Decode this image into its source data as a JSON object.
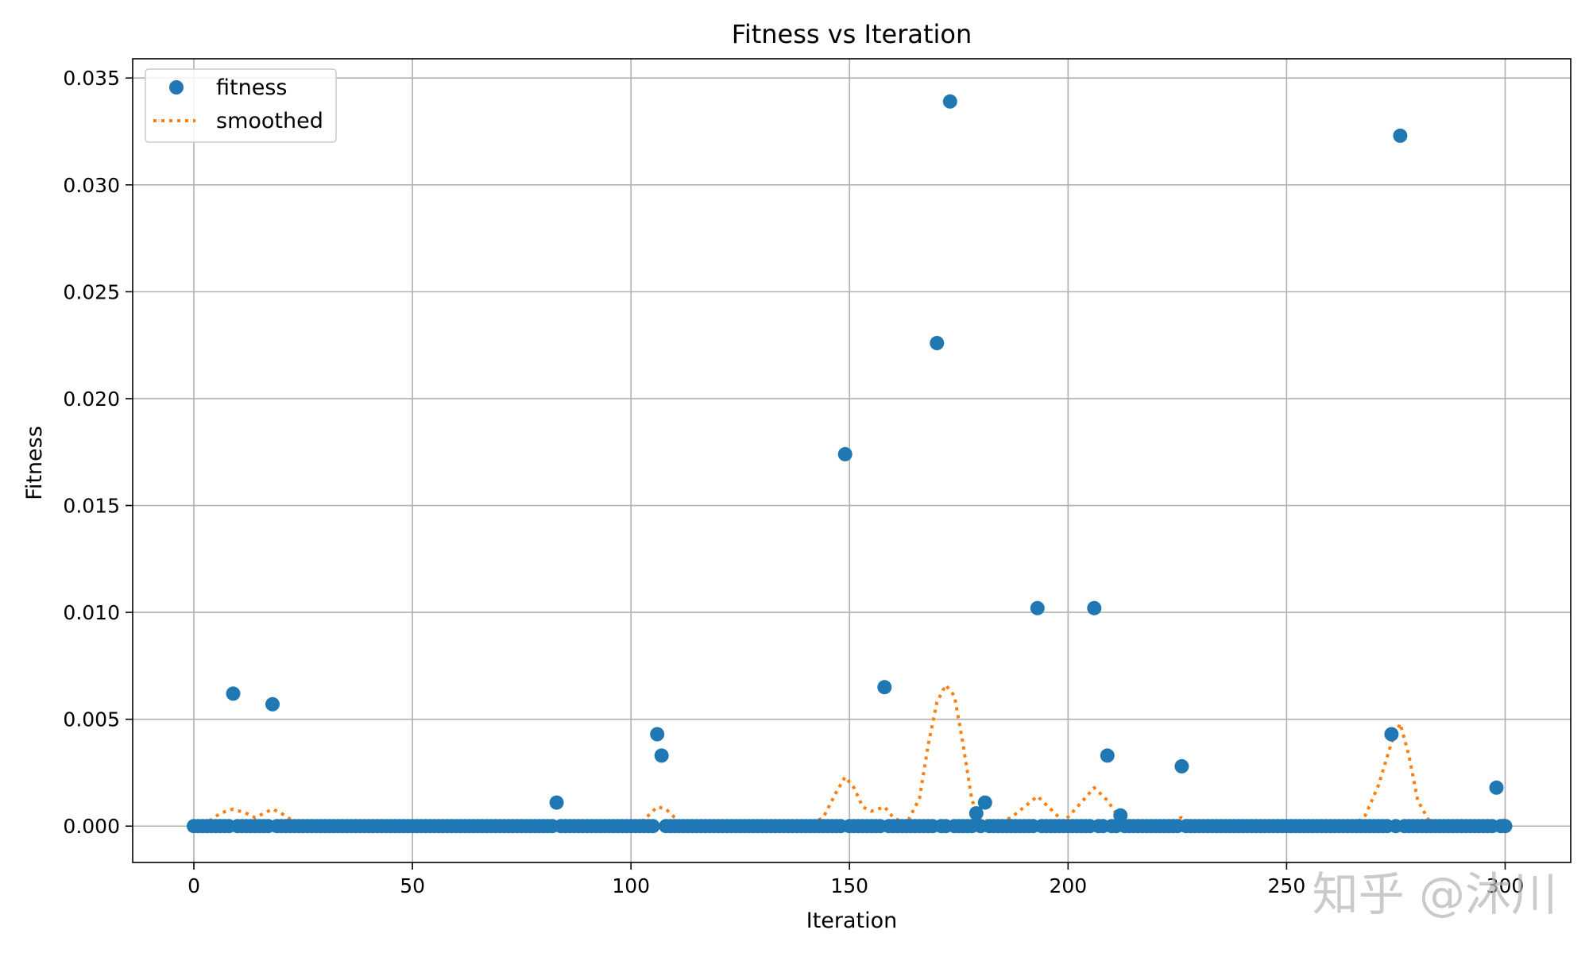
{
  "chart_data": {
    "type": "scatter",
    "title": "Fitness vs Iteration",
    "xlabel": "Iteration",
    "ylabel": "Fitness",
    "xlim": [
      -14,
      315
    ],
    "ylim": [
      -0.0017,
      0.0359
    ],
    "xticks": [
      0,
      50,
      100,
      150,
      200,
      250,
      300
    ],
    "xtick_labels": [
      "0",
      "50",
      "100",
      "150",
      "200",
      "250",
      "300"
    ],
    "yticks": [
      0,
      0.005,
      0.01,
      0.015,
      0.02,
      0.025,
      0.03,
      0.035
    ],
    "ytick_labels": [
      "0.000",
      "0.005",
      "0.010",
      "0.015",
      "0.020",
      "0.025",
      "0.030",
      "0.035"
    ],
    "grid": true,
    "legend_position": "top-left",
    "n_iterations": 301,
    "series": [
      {
        "name": "fitness",
        "style": "markers",
        "color": "#1f77b4",
        "baseline_value": 0.0,
        "nonzero_points": [
          [
            9,
            0.0062
          ],
          [
            18,
            0.0057
          ],
          [
            83,
            0.0011
          ],
          [
            106,
            0.0043
          ],
          [
            107,
            0.0033
          ],
          [
            149,
            0.0174
          ],
          [
            158,
            0.0065
          ],
          [
            170,
            0.0226
          ],
          [
            173,
            0.0339
          ],
          [
            179,
            0.0006
          ],
          [
            181,
            0.0011
          ],
          [
            193,
            0.0102
          ],
          [
            206,
            0.0102
          ],
          [
            209,
            0.0033
          ],
          [
            212,
            0.0005
          ],
          [
            226,
            0.0028
          ],
          [
            274,
            0.0043
          ],
          [
            276,
            0.0323
          ],
          [
            298,
            0.0018
          ]
        ]
      },
      {
        "name": "smoothed",
        "style": "dotted-line",
        "color": "#ff7f0e",
        "x": [
          0,
          4,
          6,
          9,
          12,
          14,
          16,
          18,
          20,
          23,
          26,
          30,
          80,
          83,
          86,
          100,
          103,
          106,
          108,
          111,
          114,
          140,
          144,
          147,
          149,
          151,
          153,
          155,
          158,
          160,
          163,
          166,
          168,
          170,
          172,
          174,
          176,
          178,
          180,
          183,
          187,
          190,
          193,
          196,
          199,
          203,
          206,
          209,
          212,
          215,
          222,
          226,
          230,
          265,
          268,
          271,
          274,
          276,
          278,
          280,
          283,
          290,
          297,
          300
        ],
        "y": [
          0.0001,
          0.0003,
          0.0006,
          0.0008,
          0.0006,
          0.0004,
          0.0006,
          0.0008,
          0.0006,
          0.0002,
          0.0,
          0.0,
          0.0,
          0.0002,
          0.0,
          0.0,
          0.0003,
          0.0009,
          0.0008,
          0.0002,
          0.0,
          0.0,
          0.0004,
          0.0016,
          0.0023,
          0.0018,
          0.0009,
          0.0007,
          0.0009,
          0.0004,
          0.0001,
          0.0013,
          0.0038,
          0.0058,
          0.0066,
          0.0061,
          0.0038,
          0.0012,
          0.0004,
          0.0001,
          0.0004,
          0.0009,
          0.0014,
          0.0008,
          0.0002,
          0.0011,
          0.0018,
          0.0012,
          0.0003,
          0.0001,
          0.0001,
          0.0004,
          0.0,
          0.0,
          0.0005,
          0.0019,
          0.0039,
          0.0048,
          0.0033,
          0.0012,
          0.0001,
          0.0,
          0.0001,
          0.0003
        ]
      }
    ]
  },
  "watermark": "知乎 @沐川"
}
